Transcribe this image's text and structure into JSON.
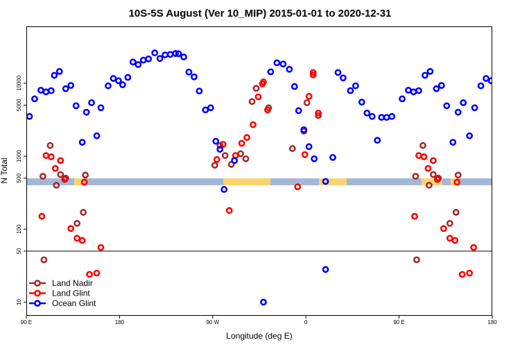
{
  "chart_data": {
    "type": "scatter",
    "title": "10S-5S August (Ver 10_MIP)   2015-01-01 to 2020-12-31",
    "xlabel": "Longitude (deg E)",
    "ylabel": "N Total",
    "x_axis": {
      "start": 90,
      "span": 360,
      "ticks": [
        {
          "pos": 0,
          "label": "90 E"
        },
        {
          "pos": 90,
          "label": "180"
        },
        {
          "pos": 180,
          "label": "90 W"
        },
        {
          "pos": 270,
          "label": "0"
        },
        {
          "pos": 360,
          "label": "90 E"
        },
        {
          "pos": 450,
          "label": "180"
        }
      ],
      "range": [
        0,
        450
      ]
    },
    "y_axis": {
      "scale": "log",
      "range": [
        6.5,
        60000
      ],
      "ticks": [
        {
          "value": 10,
          "label": "10"
        },
        {
          "value": 50,
          "label": "50"
        },
        {
          "value": 100,
          "label": "100"
        },
        {
          "value": 500,
          "label": "500"
        },
        {
          "value": 1000,
          "label": "1000"
        },
        {
          "value": 5000,
          "label": "5000"
        },
        {
          "value": 10000,
          "label": "10000"
        }
      ],
      "reference_line": 50
    },
    "legend": {
      "position": "bottom-left",
      "entries": [
        "Land Nadir",
        "Land Glint",
        "Ocean Glint"
      ]
    },
    "series": [
      {
        "name": "Land Nadir",
        "color": "#a52a2a",
        "points": [
          [
            16,
            530
          ],
          [
            17,
            38
          ],
          [
            23,
            1400
          ],
          [
            29,
            400
          ],
          [
            33,
            560
          ],
          [
            38,
            500
          ],
          [
            49,
            120
          ],
          [
            55,
            170
          ],
          [
            57,
            550
          ],
          [
            182,
            750
          ],
          [
            187,
            1400
          ],
          [
            198,
            770
          ],
          [
            192,
            1020
          ],
          [
            207,
            1080
          ],
          [
            212,
            920
          ],
          [
            218,
            5600
          ],
          [
            222,
            8500
          ],
          [
            234,
            4600
          ],
          [
            257,
            1270
          ],
          [
            268,
            2200
          ],
          [
            271,
            5400
          ],
          [
            282,
            3600
          ],
          [
            376,
            530
          ],
          [
            377,
            38
          ],
          [
            383,
            1400
          ],
          [
            389,
            400
          ],
          [
            393,
            560
          ],
          [
            398,
            500
          ],
          [
            409,
            120
          ],
          [
            415,
            170
          ],
          [
            417,
            550
          ]
        ]
      },
      {
        "name": "Land Glint",
        "color": "#ff0000",
        "points": [
          [
            15,
            150
          ],
          [
            19,
            1020
          ],
          [
            24,
            980
          ],
          [
            28,
            680
          ],
          [
            33,
            870
          ],
          [
            37,
            480
          ],
          [
            43,
            102
          ],
          [
            49,
            75
          ],
          [
            54,
            70
          ],
          [
            56,
            440
          ],
          [
            61,
            24
          ],
          [
            68,
            25
          ],
          [
            72,
            56
          ],
          [
            184,
            900
          ],
          [
            190,
            1450
          ],
          [
            196,
            180
          ],
          [
            202,
            1020
          ],
          [
            208,
            1500
          ],
          [
            213,
            1800
          ],
          [
            219,
            2700
          ],
          [
            224,
            6500
          ],
          [
            228,
            9800
          ],
          [
            229,
            10400
          ],
          [
            233,
            4300
          ],
          [
            262,
            380
          ],
          [
            269,
            1050
          ],
          [
            273,
            6600
          ],
          [
            277,
            14000
          ],
          [
            277,
            13000
          ],
          [
            282,
            3900
          ],
          [
            375,
            150
          ],
          [
            379,
            1020
          ],
          [
            384,
            980
          ],
          [
            388,
            680
          ],
          [
            393,
            870
          ],
          [
            397,
            480
          ],
          [
            403,
            102
          ],
          [
            409,
            75
          ],
          [
            414,
            70
          ],
          [
            416,
            440
          ],
          [
            421,
            24
          ],
          [
            428,
            25
          ],
          [
            432,
            56
          ]
        ]
      },
      {
        "name": "Ocean Glint",
        "color": "#0000ff",
        "points": [
          [
            3,
            3500
          ],
          [
            8,
            6100
          ],
          [
            14,
            8000
          ],
          [
            19,
            7600
          ],
          [
            24,
            7900
          ],
          [
            27,
            12800
          ],
          [
            32,
            14500
          ],
          [
            38,
            8400
          ],
          [
            43,
            9300
          ],
          [
            48,
            4900
          ],
          [
            54,
            1550
          ],
          [
            58,
            4000
          ],
          [
            63,
            5400
          ],
          [
            68,
            1900
          ],
          [
            72,
            4600
          ],
          [
            79,
            9200
          ],
          [
            84,
            11600
          ],
          [
            89,
            10800
          ],
          [
            93,
            9500
          ],
          [
            98,
            12000
          ],
          [
            103,
            19500
          ],
          [
            108,
            18000
          ],
          [
            113,
            20700
          ],
          [
            118,
            21500
          ],
          [
            124,
            26000
          ],
          [
            129,
            21800
          ],
          [
            134,
            24400
          ],
          [
            139,
            24800
          ],
          [
            144,
            25500
          ],
          [
            147,
            25300
          ],
          [
            152,
            22900
          ],
          [
            157,
            14200
          ],
          [
            162,
            12200
          ],
          [
            167,
            7800
          ],
          [
            173,
            4300
          ],
          [
            178,
            4600
          ],
          [
            183,
            1600
          ],
          [
            187,
            1240
          ],
          [
            191,
            350
          ],
          [
            201,
            870
          ],
          [
            229,
            10
          ],
          [
            236,
            14300
          ],
          [
            242,
            19000
          ],
          [
            248,
            18300
          ],
          [
            254,
            15500
          ],
          [
            259,
            9000
          ],
          [
            263,
            4200
          ],
          [
            268,
            2300
          ],
          [
            273,
            1350
          ],
          [
            278,
            920
          ],
          [
            289,
            28
          ],
          [
            289,
            450
          ],
          [
            296,
            960
          ],
          [
            301,
            14000
          ],
          [
            306,
            11800
          ],
          [
            313,
            7900
          ],
          [
            318,
            9200
          ],
          [
            324,
            5500
          ],
          [
            329,
            3900
          ],
          [
            334,
            3500
          ],
          [
            339,
            1650
          ],
          [
            343,
            3400
          ],
          [
            348,
            3400
          ],
          [
            353,
            3500
          ],
          [
            363,
            6100
          ],
          [
            369,
            8000
          ],
          [
            374,
            7600
          ],
          [
            379,
            7900
          ],
          [
            385,
            12800
          ],
          [
            390,
            14500
          ],
          [
            396,
            8400
          ],
          [
            401,
            9300
          ],
          [
            406,
            4900
          ],
          [
            412,
            1550
          ],
          [
            417,
            4000
          ],
          [
            422,
            5400
          ],
          [
            428,
            1900
          ],
          [
            433,
            4600
          ],
          [
            439,
            9200
          ],
          [
            444,
            11600
          ],
          [
            449,
            10800
          ]
        ]
      }
    ]
  }
}
